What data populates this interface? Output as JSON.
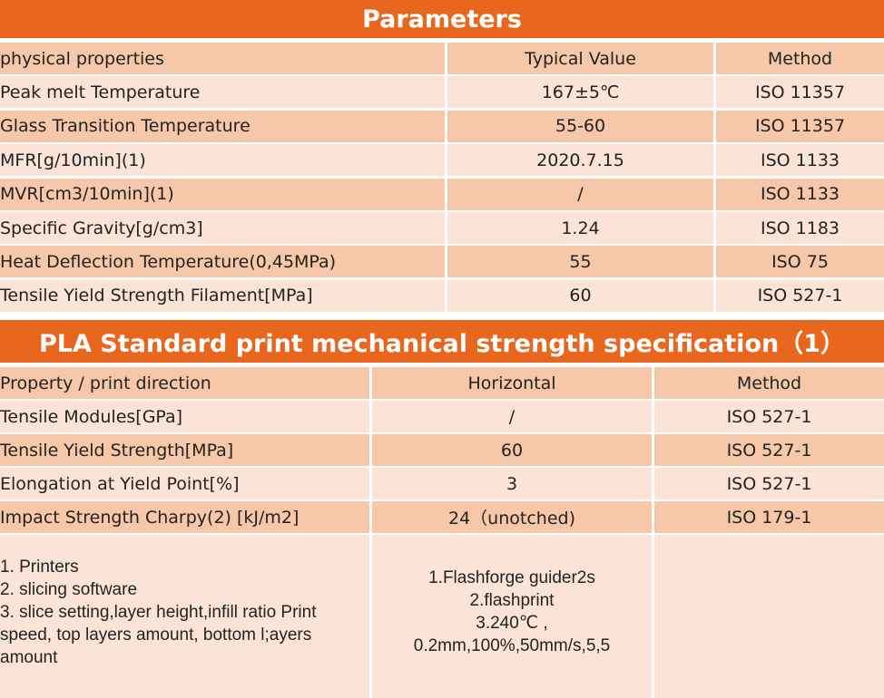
{
  "parameters": {
    "title": "Parameters",
    "header": [
      "physical properties",
      "Typical Value",
      "Method"
    ],
    "rows": [
      [
        "Peak melt Temperature",
        "167±5℃",
        "ISO 11357"
      ],
      [
        "Glass Transition Temperature",
        "55-60",
        "ISO 11357"
      ],
      [
        "MFR[g/10min](1)",
        "2020.7.15",
        "ISO 1133"
      ],
      [
        "MVR[cm3/10min](1)",
        "/",
        "ISO 1133"
      ],
      [
        "Specific Gravity[g/cm3]",
        "1.24",
        "ISO 1183"
      ],
      [
        "Heat Deflection Temperature(0,45MPa)",
        "55",
        "ISO 75"
      ],
      [
        "Tensile Yield Strength Filament[MPa]",
        "60",
        "ISO 527-1"
      ]
    ]
  },
  "mechanical": {
    "title": "PLA Standard print mechanical strength specification（1）",
    "header": [
      "Property / print direction",
      "Horizontal",
      "Method"
    ],
    "rows": [
      [
        "Tensile Modules[GPa]",
        "/",
        "ISO 527-1"
      ],
      [
        "Tensile Yield Strength[MPa]",
        "60",
        "ISO 527-1"
      ],
      [
        "Elongation at Yield Point[%]",
        "3",
        "ISO 527-1"
      ],
      [
        "Impact Strength Charpy(2) [kJ/m2]",
        "24（unotched)",
        "ISO 179-1"
      ]
    ],
    "notes": {
      "left": [
        "1. Printers",
        "2. slicing software",
        "3. slice setting,layer height,infill ratio Print speed, top layers amount, bottom l;ayers amount"
      ],
      "middle": [
        "1.Flashforge guider2s",
        "2.flashprint",
        "3.240℃ ,",
        "0.2mm,100%,50mm/s,5,5"
      ]
    }
  },
  "colors": {
    "accent": "#E8661E",
    "row_dark": "#F6C7A8",
    "row_light": "#FBE4D7"
  }
}
